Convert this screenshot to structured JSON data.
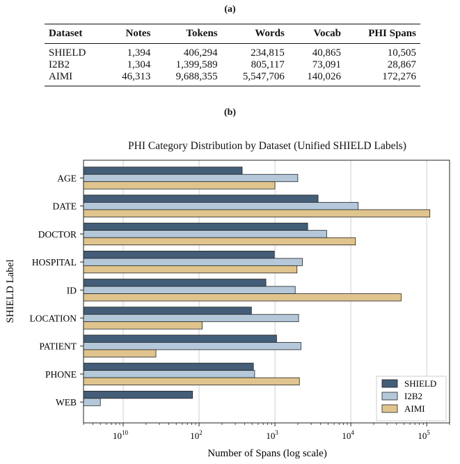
{
  "panel_a_label": "(a)",
  "panel_b_label": "(b)",
  "table": {
    "headers": [
      "Dataset",
      "Notes",
      "Tokens",
      "Words",
      "Vocab",
      "PHI Spans"
    ],
    "rows": [
      [
        "SHIELD",
        "1,394",
        "406,294",
        "234,815",
        "40,865",
        "10,505"
      ],
      [
        "I2B2",
        "1,304",
        "1,399,589",
        "805,117",
        "73,091",
        "28,867"
      ],
      [
        "AIMI",
        "46,313",
        "9,688,355",
        "5,547,706",
        "140,026",
        "172,276"
      ]
    ]
  },
  "chart_data": {
    "type": "bar",
    "orientation": "horizontal",
    "title": "PHI Category Distribution by Dataset (Unified SHIELD Labels)",
    "xlabel": "Number of Spans (log scale)",
    "ylabel": "SHIELD Label",
    "xscale": "log",
    "xlim": [
      3,
      200000
    ],
    "xticks": [
      10,
      100,
      1000,
      10000,
      100000
    ],
    "xtick_labels": [
      "10",
      "2",
      "3",
      "4",
      "5"
    ],
    "grid": "x",
    "legend_position": "bottom-right",
    "categories": [
      "AGE",
      "DATE",
      "DOCTOR",
      "HOSPITAL",
      "ID",
      "LOCATION",
      "PATIENT",
      "PHONE",
      "WEB"
    ],
    "series": [
      {
        "name": "SHIELD",
        "color": "#445d78",
        "values": [
          370,
          3700,
          2700,
          980,
          760,
          490,
          1050,
          520,
          82
        ]
      },
      {
        "name": "I2B2",
        "color": "#b4c8da",
        "values": [
          2000,
          12500,
          4800,
          2300,
          1850,
          2050,
          2200,
          540,
          5
        ]
      },
      {
        "name": "AIMI",
        "color": "#dfc48e",
        "values": [
          1000,
          110000,
          11500,
          1950,
          46000,
          110,
          27,
          2100,
          null
        ]
      }
    ]
  }
}
